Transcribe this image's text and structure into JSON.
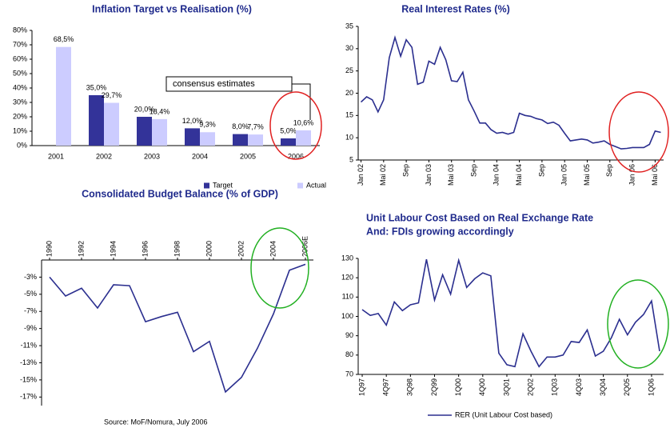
{
  "chart_data": [
    {
      "type": "bar",
      "title": "Inflation Target vs Realisation (%)",
      "categories": [
        "2001",
        "2002",
        "2003",
        "2004",
        "2005",
        "2006"
      ],
      "series": [
        {
          "name": "Target",
          "color": "#333399",
          "values": [
            null,
            35,
            20,
            12,
            8,
            5
          ],
          "value_labels": [
            null,
            "35,0%",
            "20,0%",
            "12,0%",
            "8,0%",
            "5,0%"
          ]
        },
        {
          "name": "Actual",
          "color": "#ccccff",
          "values": [
            68.5,
            29.7,
            18.4,
            9.3,
            7.7,
            10.6
          ],
          "value_labels": [
            "68,5%",
            "29,7%",
            "18,4%",
            "9,3%",
            "7,7%",
            "10,6%"
          ]
        }
      ],
      "annotation": "consensus estimates",
      "ylim": [
        0,
        80
      ],
      "yticks": [
        {
          "value": 0,
          "label": "0%"
        },
        {
          "value": 10,
          "label": "10%"
        },
        {
          "value": 20,
          "label": "20%"
        },
        {
          "value": 30,
          "label": "30%"
        },
        {
          "value": 40,
          "label": "40%"
        },
        {
          "value": 50,
          "label": "50%"
        },
        {
          "value": 60,
          "label": "60%"
        },
        {
          "value": 70,
          "label": "70%"
        },
        {
          "value": 80,
          "label": "80%"
        }
      ],
      "legend": "bottom"
    },
    {
      "type": "line",
      "title": "Real Interest Rates (%)",
      "categories": [
        "Jan 02",
        null,
        null,
        null,
        "Mai 02",
        null,
        null,
        null,
        "Sep",
        null,
        null,
        null,
        "Jan 03",
        null,
        null,
        null,
        "Mai 03",
        null,
        null,
        null,
        "Sep",
        null,
        null,
        null,
        "Jan 04",
        null,
        null,
        null,
        "Mai 04",
        null,
        null,
        null,
        "Sep",
        null,
        null,
        null,
        "Jan 05",
        null,
        null,
        null,
        "Mai 05",
        null,
        null,
        null,
        "Sep",
        null,
        null,
        null,
        "Jan 06",
        null,
        null,
        null,
        "Mai 06",
        null
      ],
      "series": [
        {
          "color": "#2b2f8f",
          "values": [
            18,
            19.2,
            18.5,
            15.8,
            18.5,
            28,
            32.5,
            28.3,
            32,
            30.3,
            22,
            22.5,
            27.2,
            26.5,
            30.3,
            27.5,
            22.8,
            22.6,
            24.7,
            18.5,
            16,
            13.3,
            13.3,
            11.8,
            11,
            11.2,
            10.8,
            11.2,
            15.5,
            15,
            14.8,
            14.3,
            14,
            13.2,
            13.5,
            12.8,
            11,
            9.3,
            9.5,
            9.7,
            9.5,
            8.8,
            9,
            9.3,
            8.5,
            8,
            7.5,
            7.6,
            7.8,
            7.8,
            7.8,
            8.5,
            11.5,
            11.2
          ]
        }
      ],
      "ylim": [
        5,
        35
      ],
      "yticks": [
        5,
        10,
        15,
        20,
        25,
        30,
        35
      ]
    },
    {
      "type": "line",
      "title": "Consolidated Budget Balance (% of GDP)",
      "categories": [
        "1990",
        null,
        "1992",
        null,
        "1994",
        null,
        "1996",
        null,
        "1998",
        null,
        "2000",
        null,
        "2002",
        null,
        "2004",
        null,
        "2006E"
      ],
      "series": [
        {
          "color": "#2b2f8f",
          "values": [
            -3,
            -5.2,
            -4.3,
            -6.6,
            -3.9,
            -4,
            -8.2,
            -7.6,
            -7.1,
            -11.7,
            -10.5,
            -16.4,
            -14.7,
            -11.3,
            -7.3,
            -2.2,
            -1.5
          ]
        }
      ],
      "xaxis": "top",
      "ylim": [
        -18,
        -1
      ],
      "yticks": [
        {
          "value": -3,
          "label": "-3%"
        },
        {
          "value": -5,
          "label": "-5%"
        },
        {
          "value": -7,
          "label": "-7%"
        },
        {
          "value": -9,
          "label": "-9%"
        },
        {
          "value": -11,
          "label": "-11%"
        },
        {
          "value": -13,
          "label": "-13%"
        },
        {
          "value": -15,
          "label": "-15%"
        },
        {
          "value": -17,
          "label": "-17%"
        }
      ],
      "source": "Source: MoF/Nomura, July 2006"
    },
    {
      "type": "line",
      "title": "Unit Labour Cost Based on Real Exchange Rate",
      "subtitle": "And: FDIs growing accordingly",
      "categories": [
        "1Q97",
        null,
        null,
        "4Q97",
        null,
        null,
        "3Q98",
        null,
        null,
        "2Q99",
        null,
        null,
        "1Q00",
        null,
        null,
        "4Q00",
        null,
        null,
        "3Q01",
        null,
        null,
        "2Q02",
        null,
        null,
        "1Q03",
        null,
        null,
        "4Q03",
        null,
        null,
        "3Q04",
        null,
        null,
        "2Q05",
        null,
        null,
        "1Q06",
        null
      ],
      "series": [
        {
          "name": "RER (Unit Labour Cost based)",
          "color": "#2b2f8f",
          "values": [
            103.5,
            100.5,
            101.5,
            95.5,
            107.5,
            103,
            106,
            107,
            129.5,
            108.5,
            121.5,
            111.5,
            129,
            115,
            119.5,
            122.5,
            121,
            81,
            75,
            74,
            91,
            82,
            74,
            79,
            79,
            80,
            87,
            86.5,
            93,
            79.5,
            82,
            89,
            98.5,
            90.5,
            97,
            101,
            108,
            82
          ]
        }
      ],
      "ylim": [
        70,
        130
      ],
      "yticks": [
        70,
        80,
        90,
        100,
        110,
        120,
        130
      ],
      "legend": "bottom"
    }
  ]
}
